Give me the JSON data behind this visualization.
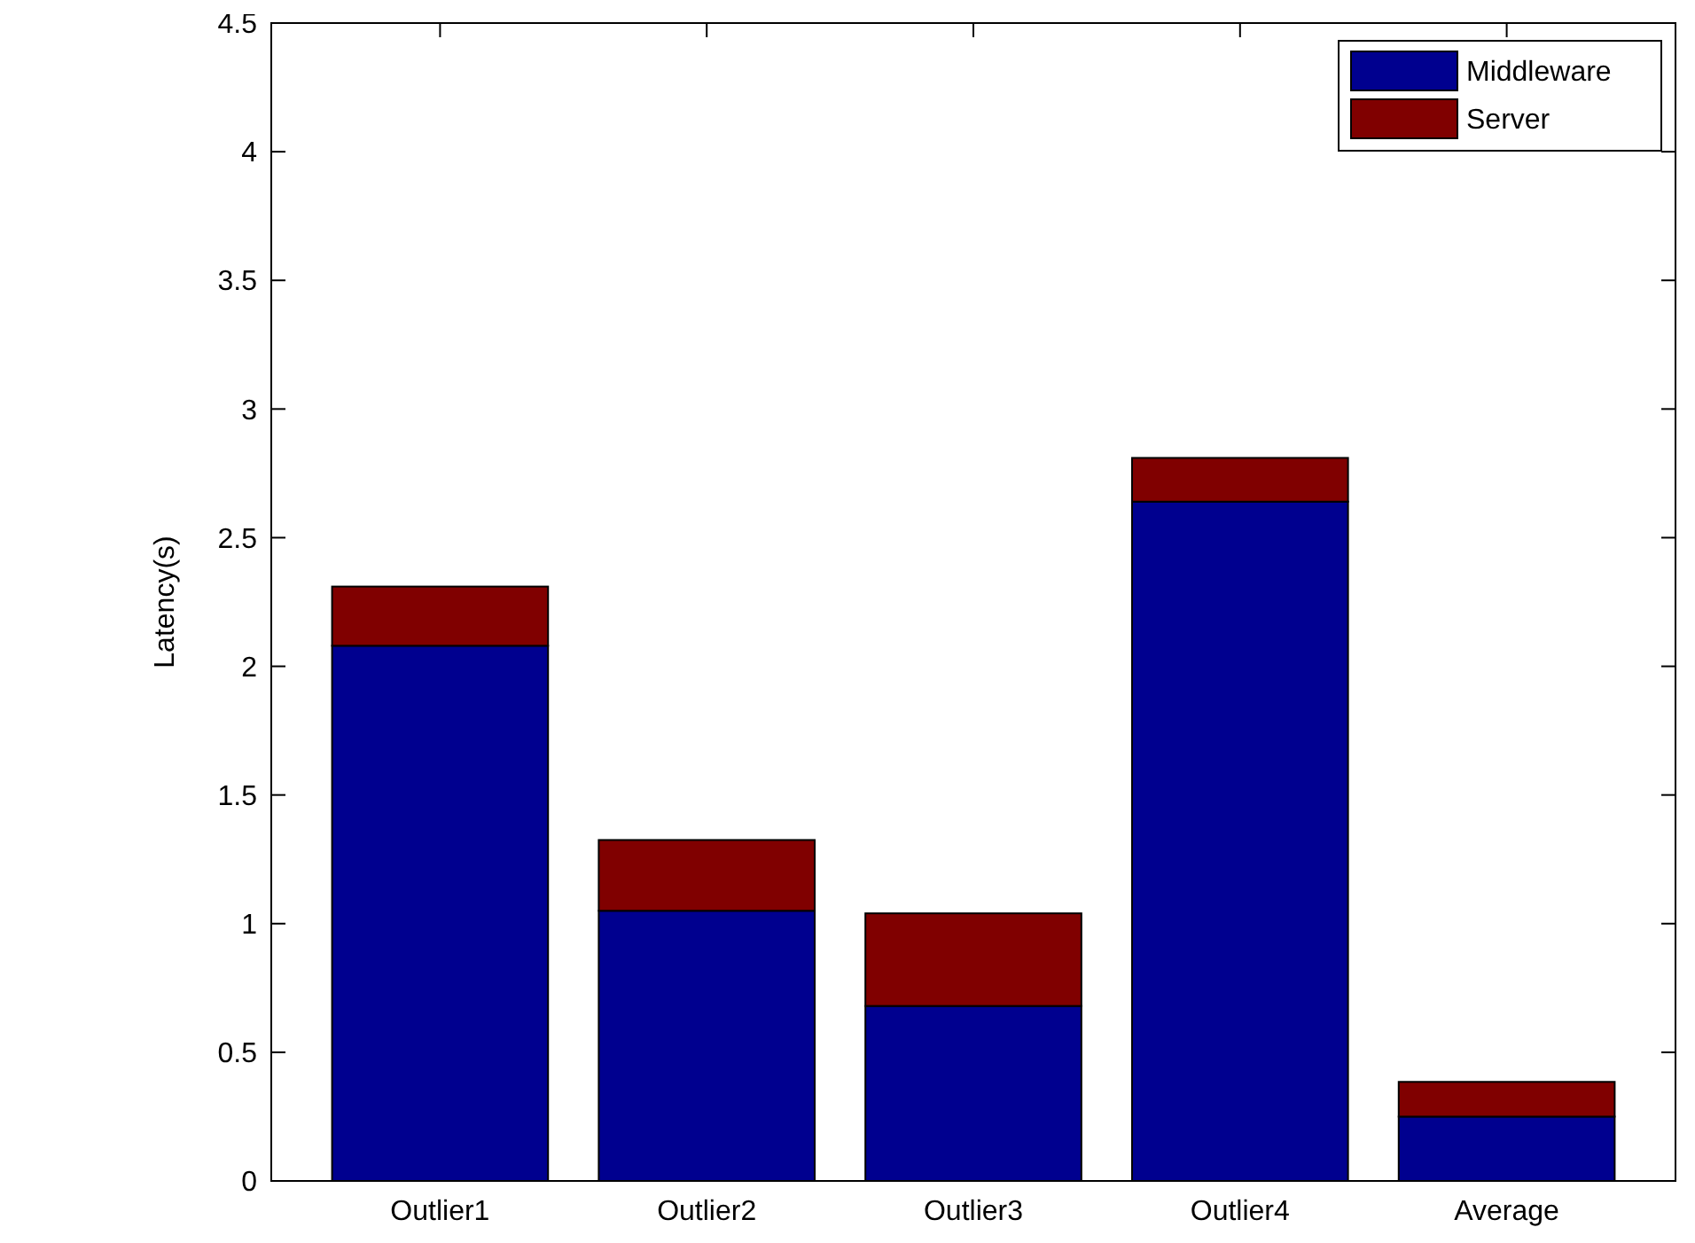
{
  "chart_data": {
    "type": "bar",
    "stacked": true,
    "ylabel": "Latency(s)",
    "categories": [
      "Outlier1",
      "Outlier2",
      "Outlier3",
      "Outlier4",
      "Average"
    ],
    "series": [
      {
        "name": "Middleware",
        "color": "#00008f",
        "values": [
          2.08,
          1.05,
          0.68,
          2.64,
          0.25
        ]
      },
      {
        "name": "Server",
        "color": "#800000",
        "values": [
          0.23,
          0.275,
          0.36,
          0.17,
          0.135
        ]
      }
    ],
    "ylim": [
      0,
      4.5
    ],
    "yticks": [
      0,
      0.5,
      1,
      1.5,
      2,
      2.5,
      3,
      3.5,
      4,
      4.5
    ],
    "legend": "top right"
  }
}
